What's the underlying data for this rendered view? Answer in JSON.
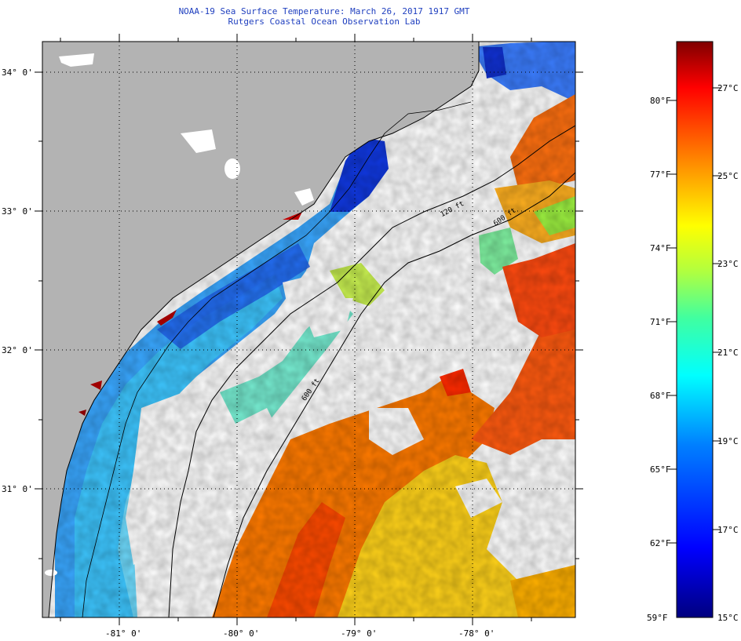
{
  "header": {
    "title": "NOAA-19 Sea Surface Temperature:  March 26, 2017 1917 GMT",
    "subtitle": "Rutgers Coastal Ocean Observation Lab"
  },
  "map": {
    "lat_labels": [
      "34° 0'",
      "33° 0'",
      "32° 0'",
      "31° 0'"
    ],
    "lon_labels": [
      "-81° 0'",
      "-80° 0'",
      "-79° 0'",
      "-78° 0'"
    ],
    "isobath_labels": [
      "120 ft",
      "600 ft",
      "600 ft"
    ]
  },
  "colorbar": {
    "f_labels": [
      "80°F",
      "77°F",
      "74°F",
      "71°F",
      "68°F",
      "65°F",
      "62°F",
      "59°F"
    ],
    "c_labels": [
      "27°C",
      "25°C",
      "23°C",
      "21°C",
      "19°C",
      "17°C",
      "15°C"
    ]
  },
  "colors": {
    "land": "#b3b3b3",
    "title": "#1f3fbf",
    "cold": "#00007f",
    "warm": "#7f0000"
  }
}
